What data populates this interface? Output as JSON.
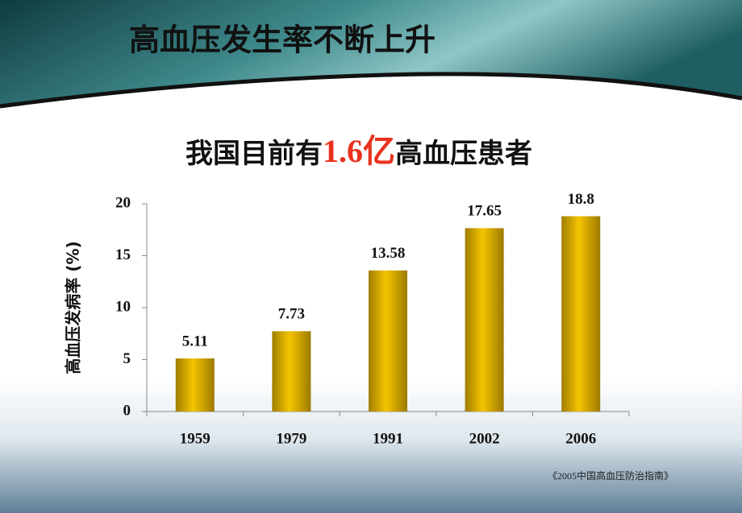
{
  "slide_title": "高血压发生率不断上升",
  "headline": [
    "我国目前有",
    "1.6亿",
    "高血压患者"
  ],
  "source": "《2005中国高血压防治指南》",
  "chart_data": {
    "type": "bar",
    "ylabel": "高血压发病率 (%)",
    "categories": [
      "1959",
      "1979",
      "1991",
      "2002",
      "2006"
    ],
    "values": [
      5.11,
      7.73,
      13.58,
      17.65,
      18.8
    ],
    "color": "#f5c400",
    "ylim": [
      0,
      20
    ],
    "yticks": [
      0,
      5,
      10,
      15,
      20
    ]
  }
}
